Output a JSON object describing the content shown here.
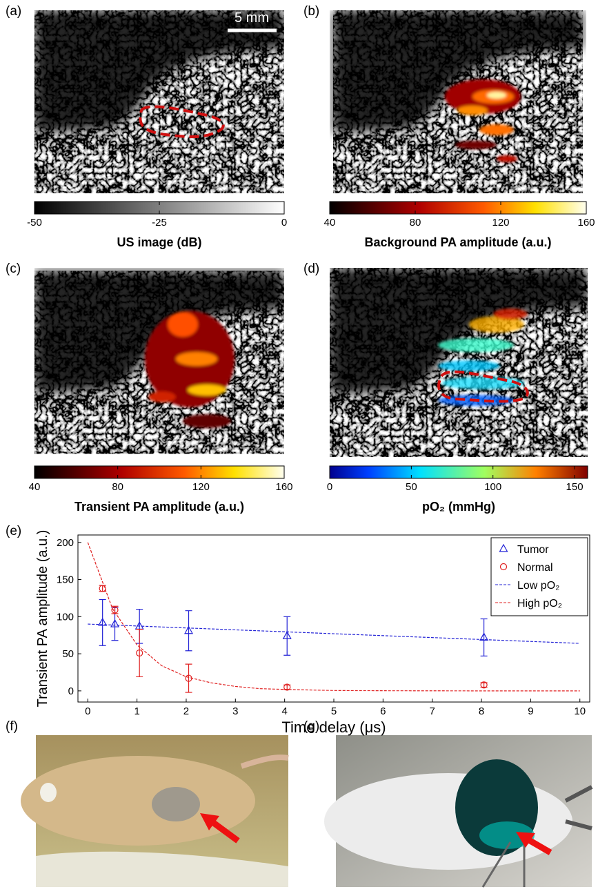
{
  "panel_labels": [
    "(a)",
    "(b)",
    "(c)",
    "(d)",
    "(e)",
    "(f)",
    "(g)"
  ],
  "scale_bar": "5 mm",
  "colorbars": [
    {
      "label": "US image (dB)",
      "lim": [
        -50,
        0
      ],
      "ticks": [
        -50,
        -25,
        0
      ]
    },
    {
      "label": "Background PA amplitude (a.u.)",
      "lim": [
        40,
        160
      ],
      "ticks": [
        40,
        80,
        120,
        160
      ]
    },
    {
      "label": "Transient PA amplitude (a.u.)",
      "lim": [
        40,
        160
      ],
      "ticks": [
        40,
        80,
        120,
        160
      ]
    },
    {
      "label": "pO₂ (mmHg)",
      "lim": [
        0,
        158
      ],
      "ticks": [
        0,
        50,
        100,
        150
      ]
    }
  ],
  "chart_data": {
    "type": "scatter",
    "x_label": "Time delay (μs)",
    "y_label": "Transient PA amplitude (a.u.)",
    "xlim": [
      -0.2,
      10.2
    ],
    "ylim": [
      -15,
      210
    ],
    "xticks": [
      0,
      1,
      2,
      3,
      4,
      5,
      6,
      7,
      8,
      9,
      10
    ],
    "yticks": [
      0,
      50,
      100,
      150,
      200
    ],
    "legend": "top-right",
    "series": [
      {
        "name": "Tumor",
        "color": "#2323d6",
        "marker": "triangle",
        "x": [
          0.3,
          0.55,
          1.05,
          2.05,
          4.05,
          8.05
        ],
        "values": [
          92,
          90,
          87,
          81,
          74,
          72
        ],
        "errors": [
          31,
          22,
          23,
          27,
          26,
          25
        ]
      },
      {
        "name": "Normal",
        "color": "#e02020",
        "marker": "circle",
        "x": [
          0.3,
          0.55,
          1.05,
          2.05,
          4.05,
          8.05
        ],
        "values": [
          138,
          109,
          51,
          17,
          5,
          8
        ],
        "errors": [
          4,
          5,
          32,
          19,
          3,
          3
        ]
      },
      {
        "name": "Low pO₂",
        "color": "#2323d6",
        "marker": "dashed",
        "x": [
          0,
          5,
          10
        ],
        "values": [
          90,
          77,
          64
        ]
      },
      {
        "name": "High pO₂",
        "color": "#e02020",
        "marker": "dashed",
        "x": [
          0,
          0.5,
          1,
          1.5,
          2,
          2.5,
          3,
          3.5,
          4,
          5,
          6,
          7,
          8,
          10
        ],
        "values": [
          200,
          111,
          62,
          34,
          19,
          11,
          6,
          3,
          2,
          0.5,
          0.2,
          0.1,
          0,
          0
        ]
      }
    ]
  }
}
